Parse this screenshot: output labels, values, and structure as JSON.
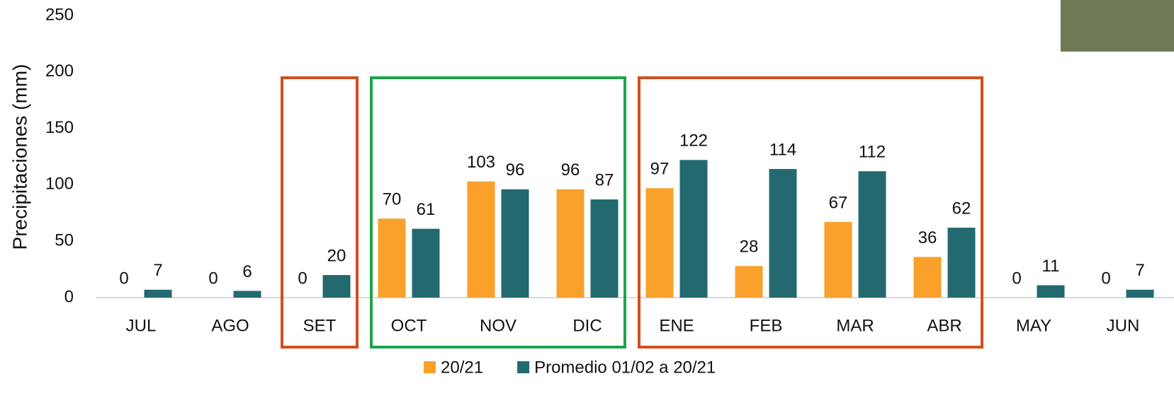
{
  "chart_data": {
    "type": "bar",
    "y_label": "Precipitaciones (mm)",
    "categories": [
      "JUL",
      "AGO",
      "SET",
      "OCT",
      "NOV",
      "DIC",
      "ENE",
      "FEB",
      "MAR",
      "ABR",
      "MAY",
      "JUN"
    ],
    "series": [
      {
        "name": "20/21",
        "color": "#F9A12A",
        "values": [
          0,
          0,
          0,
          70,
          103,
          96,
          97,
          28,
          67,
          36,
          0,
          0
        ]
      },
      {
        "name": "Promedio 01/02 a 20/21",
        "color": "#236A70",
        "values": [
          7,
          6,
          20,
          61,
          96,
          87,
          122,
          114,
          112,
          62,
          11,
          7
        ]
      }
    ],
    "ylim": [
      0,
      250
    ],
    "yticks": [
      0,
      50,
      100,
      150,
      200,
      250
    ],
    "grid": false
  }
}
